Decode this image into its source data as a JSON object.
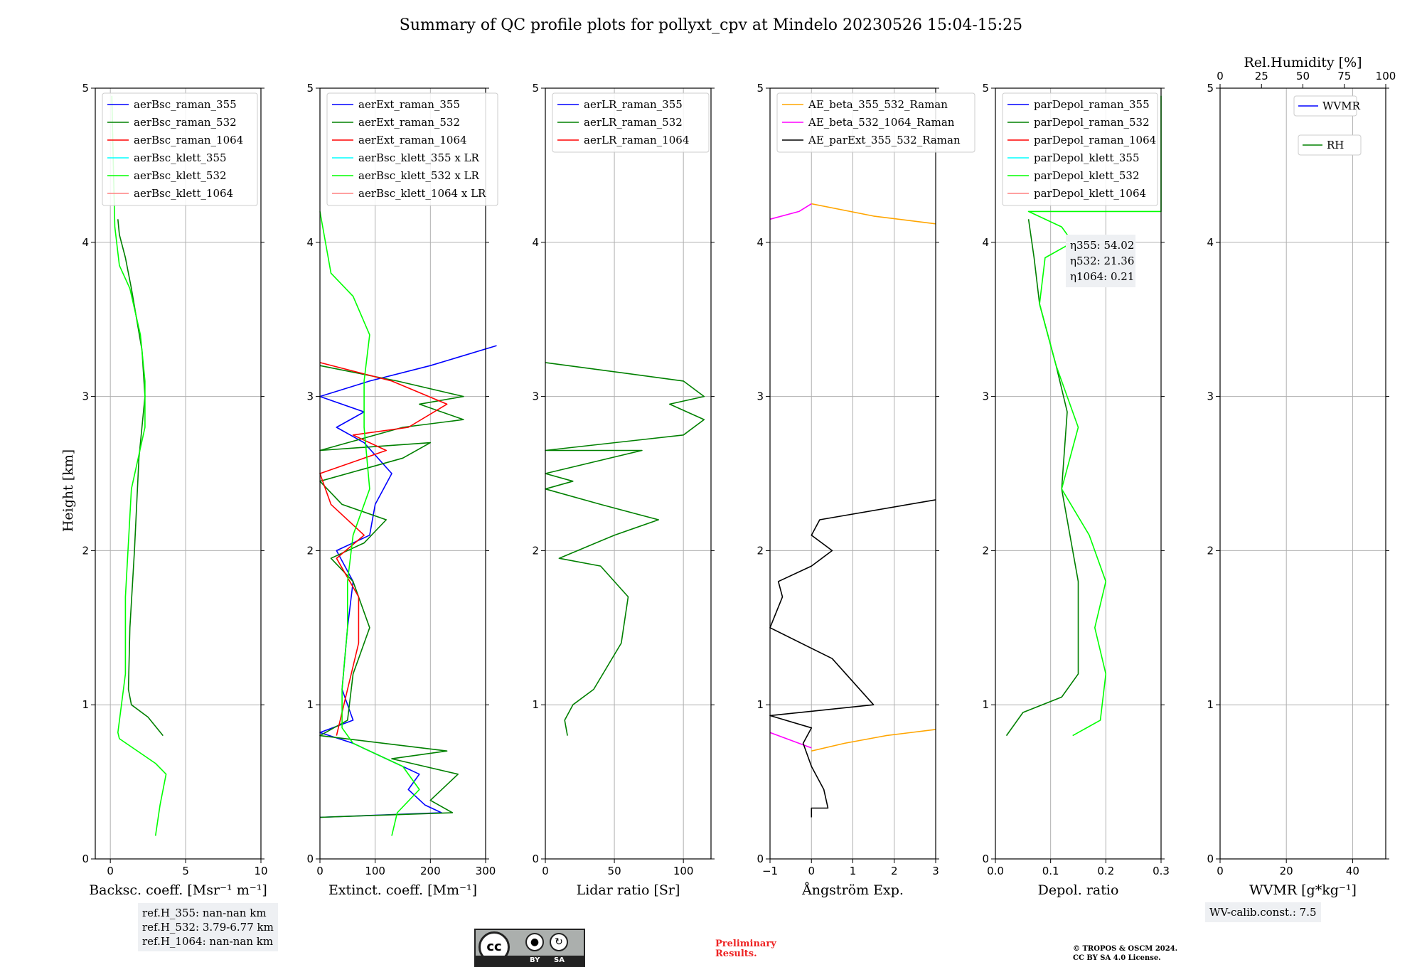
{
  "title": "Summary of QC profile plots for pollyxt_cpv at Mindelo 20230526 15:04-15:25",
  "colors": {
    "blue": "#0000ff",
    "darkgreen": "#008000",
    "red": "#ff0000",
    "cyan": "#00ffff",
    "lime": "#00ff00",
    "pink": "#ff8080",
    "orange": "#ffa500",
    "magenta": "#ff00ff",
    "black": "#000000",
    "grid": "#b0b0b0"
  },
  "chart_data": [
    {
      "type": "line",
      "id": "bsc",
      "xlabel": "Backsc. coeff. [Msr⁻¹ m⁻¹]",
      "ylabel": "Height [km]",
      "xlim": [
        -1,
        10
      ],
      "ylim": [
        0,
        5
      ],
      "xticks": [
        0,
        5,
        10
      ],
      "yticks": [
        0,
        1,
        2,
        3,
        4,
        5
      ],
      "legend": [
        "aerBsc_raman_355",
        "aerBsc_raman_532",
        "aerBsc_raman_1064",
        "aerBsc_klett_355",
        "aerBsc_klett_532",
        "aerBsc_klett_1064"
      ],
      "legend_colors": [
        "blue",
        "darkgreen",
        "red",
        "cyan",
        "lime",
        "pink"
      ],
      "series": [
        {
          "name": "aerBsc_raman_532",
          "color": "darkgreen",
          "points": [
            [
              3.5,
              0.8
            ],
            [
              2.5,
              0.92
            ],
            [
              1.4,
              1.0
            ],
            [
              1.2,
              1.1
            ],
            [
              1.3,
              1.5
            ],
            [
              1.6,
              2.0
            ],
            [
              1.9,
              2.6
            ],
            [
              2.3,
              3.0
            ],
            [
              2.1,
              3.3
            ],
            [
              1.4,
              3.7
            ],
            [
              1.0,
              3.9
            ],
            [
              0.6,
              4.05
            ],
            [
              0.5,
              4.15
            ]
          ]
        },
        {
          "name": "aerBsc_klett_532",
          "color": "lime",
          "points": [
            [
              3.0,
              0.15
            ],
            [
              3.3,
              0.35
            ],
            [
              3.7,
              0.55
            ],
            [
              3.0,
              0.62
            ],
            [
              0.6,
              0.78
            ],
            [
              0.5,
              0.82
            ],
            [
              1.0,
              1.2
            ],
            [
              1.0,
              1.7
            ],
            [
              1.4,
              2.4
            ],
            [
              2.3,
              2.8
            ],
            [
              2.3,
              3.1
            ],
            [
              2.0,
              3.4
            ],
            [
              1.3,
              3.7
            ],
            [
              0.6,
              3.85
            ],
            [
              0.3,
              4.1
            ],
            [
              0.2,
              4.5
            ],
            [
              0.1,
              4.95
            ]
          ]
        }
      ]
    },
    {
      "type": "line",
      "id": "ext",
      "xlabel": "Extinct. coeff. [Mm⁻¹]",
      "xlim": [
        0,
        300
      ],
      "ylim": [
        0,
        5
      ],
      "xticks": [
        0,
        100,
        200,
        300
      ],
      "yticks": [
        0,
        1,
        2,
        3,
        4,
        5
      ],
      "legend": [
        "aerExt_raman_355",
        "aerExt_raman_532",
        "aerExt_raman_1064",
        "aerBsc_klett_355 x LR",
        "aerBsc_klett_532 x LR",
        "aerBsc_klett_1064 x LR"
      ],
      "legend_colors": [
        "blue",
        "darkgreen",
        "red",
        "cyan",
        "lime",
        "pink"
      ],
      "series": [
        {
          "name": "aerExt_raman_355",
          "color": "blue",
          "points": [
            [
              0,
              0.27
            ],
            [
              220,
              0.3
            ],
            [
              190,
              0.35
            ],
            [
              160,
              0.45
            ],
            [
              180,
              0.55
            ],
            [
              120,
              0.65
            ],
            [
              60,
              0.75
            ],
            [
              0,
              0.82
            ],
            [
              60,
              0.9
            ],
            [
              40,
              1.1
            ],
            [
              50,
              1.5
            ],
            [
              60,
              1.8
            ],
            [
              30,
              2.0
            ],
            [
              90,
              2.1
            ],
            [
              100,
              2.3
            ],
            [
              130,
              2.5
            ],
            [
              80,
              2.7
            ],
            [
              30,
              2.8
            ],
            [
              80,
              2.9
            ],
            [
              0,
              3.0
            ],
            [
              90,
              3.1
            ],
            [
              200,
              3.2
            ],
            [
              320,
              3.33
            ]
          ]
        },
        {
          "name": "aerExt_raman_532",
          "color": "darkgreen",
          "points": [
            [
              0,
              0.27
            ],
            [
              240,
              0.3
            ],
            [
              200,
              0.38
            ],
            [
              250,
              0.55
            ],
            [
              130,
              0.65
            ],
            [
              230,
              0.7
            ],
            [
              0,
              0.8
            ],
            [
              50,
              0.9
            ],
            [
              60,
              1.2
            ],
            [
              90,
              1.5
            ],
            [
              60,
              1.8
            ],
            [
              20,
              1.95
            ],
            [
              80,
              2.05
            ],
            [
              120,
              2.2
            ],
            [
              40,
              2.3
            ],
            [
              0,
              2.45
            ],
            [
              150,
              2.6
            ],
            [
              200,
              2.7
            ],
            [
              0,
              2.65
            ],
            [
              150,
              2.8
            ],
            [
              260,
              2.85
            ],
            [
              180,
              2.95
            ],
            [
              260,
              3.0
            ],
            [
              140,
              3.1
            ],
            [
              0,
              3.2
            ]
          ]
        },
        {
          "name": "aerExt_raman_1064",
          "color": "red",
          "points": [
            [
              30,
              0.8
            ],
            [
              50,
              1.1
            ],
            [
              70,
              1.4
            ],
            [
              70,
              1.7
            ],
            [
              30,
              1.95
            ],
            [
              80,
              2.1
            ],
            [
              20,
              2.3
            ],
            [
              0,
              2.5
            ],
            [
              120,
              2.65
            ],
            [
              60,
              2.75
            ],
            [
              160,
              2.8
            ],
            [
              230,
              2.95
            ],
            [
              130,
              3.1
            ],
            [
              0,
              3.22
            ]
          ]
        },
        {
          "name": "aerBsc_klett_532 x LR",
          "color": "lime",
          "points": [
            [
              130,
              0.15
            ],
            [
              140,
              0.3
            ],
            [
              180,
              0.45
            ],
            [
              150,
              0.6
            ],
            [
              60,
              0.75
            ],
            [
              40,
              0.85
            ],
            [
              40,
              1.1
            ],
            [
              50,
              1.5
            ],
            [
              50,
              1.8
            ],
            [
              60,
              2.1
            ],
            [
              90,
              2.4
            ],
            [
              80,
              2.8
            ],
            [
              80,
              3.1
            ],
            [
              90,
              3.4
            ],
            [
              60,
              3.65
            ],
            [
              20,
              3.8
            ],
            [
              0,
              4.2
            ]
          ]
        }
      ]
    },
    {
      "type": "line",
      "id": "lr",
      "xlabel": "Lidar ratio [Sr]",
      "xlim": [
        0,
        120
      ],
      "ylim": [
        0,
        5
      ],
      "xticks": [
        0,
        50,
        100
      ],
      "yticks": [
        0,
        1,
        2,
        3,
        4,
        5
      ],
      "legend": [
        "aerLR_raman_355",
        "aerLR_raman_532",
        "aerLR_raman_1064"
      ],
      "legend_colors": [
        "blue",
        "darkgreen",
        "red"
      ],
      "series": [
        {
          "name": "aerLR_raman_532",
          "color": "darkgreen",
          "points": [
            [
              16,
              0.8
            ],
            [
              14,
              0.9
            ],
            [
              20,
              1.0
            ],
            [
              35,
              1.1
            ],
            [
              55,
              1.4
            ],
            [
              60,
              1.7
            ],
            [
              40,
              1.9
            ],
            [
              10,
              1.95
            ],
            [
              50,
              2.1
            ],
            [
              82,
              2.2
            ],
            [
              40,
              2.3
            ],
            [
              0,
              2.4
            ],
            [
              20,
              2.45
            ],
            [
              0,
              2.5
            ],
            [
              70,
              2.65
            ],
            [
              0,
              2.65
            ],
            [
              100,
              2.75
            ],
            [
              115,
              2.85
            ],
            [
              90,
              2.95
            ],
            [
              115,
              3.0
            ],
            [
              100,
              3.1
            ],
            [
              0,
              3.22
            ]
          ]
        }
      ]
    },
    {
      "type": "line",
      "id": "ae",
      "xlabel": "Ångström Exp.",
      "xlim": [
        -1,
        3
      ],
      "ylim": [
        0,
        5
      ],
      "xticks": [
        -1,
        0,
        1,
        2,
        3
      ],
      "yticks": [
        0,
        1,
        2,
        3,
        4,
        5
      ],
      "legend": [
        "AE_beta_355_532_Raman",
        "AE_beta_532_1064_Raman",
        "AE_parExt_355_532_Raman"
      ],
      "legend_colors": [
        "orange",
        "magenta",
        "black"
      ],
      "series": [
        {
          "name": "AE_beta_355_532_Raman",
          "color": "orange",
          "points": [
            [
              0,
              0.7
            ],
            [
              0.8,
              0.75
            ],
            [
              1.8,
              0.8
            ],
            [
              3,
              0.84
            ]
          ]
        },
        {
          "name": "AE_beta_532_1064_Raman",
          "color": "magenta",
          "points": [
            [
              -1,
              0.82
            ],
            [
              -0.4,
              0.76
            ],
            [
              0,
              0.72
            ]
          ]
        },
        {
          "name": "AE_parExt_355_532_Raman",
          "color": "black",
          "points": [
            [
              0,
              0.27
            ],
            [
              0,
              0.33
            ],
            [
              0.4,
              0.33
            ],
            [
              0.3,
              0.45
            ],
            [
              0,
              0.6
            ],
            [
              -0.2,
              0.75
            ],
            [
              0,
              0.85
            ],
            [
              -1,
              0.93
            ],
            [
              1.5,
              1.0
            ],
            [
              1.0,
              1.15
            ],
            [
              0.5,
              1.3
            ],
            [
              -1,
              1.5
            ],
            [
              -0.7,
              1.7
            ],
            [
              -0.8,
              1.8
            ],
            [
              0,
              1.9
            ],
            [
              0.5,
              2.0
            ],
            [
              0,
              2.1
            ],
            [
              0.2,
              2.2
            ],
            [
              3,
              2.33
            ]
          ]
        },
        {
          "name": "AE_beta_355_532_Raman",
          "color": "orange",
          "points": [
            [
              0,
              4.25
            ],
            [
              1.5,
              4.17
            ],
            [
              3,
              4.12
            ]
          ]
        },
        {
          "name": "AE_beta_532_1064_Raman",
          "color": "magenta",
          "points": [
            [
              -1,
              4.15
            ],
            [
              -0.3,
              4.2
            ],
            [
              0,
              4.25
            ]
          ]
        }
      ]
    },
    {
      "type": "line",
      "id": "depol",
      "xlabel": "Depol. ratio",
      "xlim": [
        0,
        0.3
      ],
      "ylim": [
        0,
        5
      ],
      "xticks": [
        0,
        0.1,
        0.2,
        0.3
      ],
      "xticklabels": [
        "0.0",
        "0.1",
        "0.2",
        "0.3"
      ],
      "yticks": [
        0,
        1,
        2,
        3,
        4,
        5
      ],
      "legend": [
        "parDepol_raman_355",
        "parDepol_raman_532",
        "parDepol_raman_1064",
        "parDepol_klett_355",
        "parDepol_klett_532",
        "parDepol_klett_1064"
      ],
      "legend_colors": [
        "blue",
        "darkgreen",
        "red",
        "cyan",
        "lime",
        "pink"
      ],
      "annotations": [
        "η355: 54.02",
        "η532: 21.36",
        "η1064: 0.21"
      ],
      "series": [
        {
          "name": "parDepol_raman_532",
          "color": "darkgreen",
          "points": [
            [
              0.02,
              0.8
            ],
            [
              0.05,
              0.95
            ],
            [
              0.12,
              1.05
            ],
            [
              0.15,
              1.2
            ],
            [
              0.15,
              1.8
            ],
            [
              0.12,
              2.4
            ],
            [
              0.13,
              2.9
            ],
            [
              0.11,
              3.2
            ],
            [
              0.08,
              3.6
            ],
            [
              0.07,
              3.9
            ],
            [
              0.06,
              4.15
            ]
          ]
        },
        {
          "name": "parDepol_klett_532",
          "color": "lime",
          "points": [
            [
              0.14,
              0.8
            ],
            [
              0.19,
              0.9
            ],
            [
              0.2,
              1.2
            ],
            [
              0.18,
              1.5
            ],
            [
              0.2,
              1.8
            ],
            [
              0.17,
              2.1
            ],
            [
              0.12,
              2.4
            ],
            [
              0.15,
              2.8
            ],
            [
              0.11,
              3.2
            ],
            [
              0.08,
              3.6
            ],
            [
              0.09,
              3.9
            ],
            [
              0.14,
              4.0
            ],
            [
              0.12,
              4.1
            ],
            [
              0.06,
              4.2
            ],
            [
              0.3,
              4.2
            ],
            [
              0.3,
              4.45
            ],
            [
              0.3,
              4.95
            ]
          ]
        }
      ]
    },
    {
      "type": "line",
      "id": "wv",
      "xlabel": "WVMR [g*kg⁻¹]",
      "top_xlabel": "Rel.Humidity [%]",
      "xlim": [
        0,
        50
      ],
      "ylim": [
        0,
        5
      ],
      "xticks": [
        0,
        20,
        40
      ],
      "top_xticks": [
        0,
        25,
        50,
        75,
        100
      ],
      "yticks": [
        0,
        1,
        2,
        3,
        4,
        5
      ],
      "legend": [
        "WVMR",
        "RH"
      ],
      "legend_colors": [
        "blue",
        "darkgreen"
      ],
      "series": []
    }
  ],
  "ref_box": [
    "ref.H_355: nan-nan km",
    "ref.H_532: 3.79-6.77 km",
    "ref.H_1064: nan-nan km"
  ],
  "wv_calib": "WV-calib.const.: 7.5",
  "license": {
    "by": "BY",
    "sa": "SA",
    "cc": "cc"
  },
  "preliminary": "Preliminary\nResults.",
  "copyright": "© TROPOS & OSCM 2024.\nCC BY SA 4.0 License."
}
